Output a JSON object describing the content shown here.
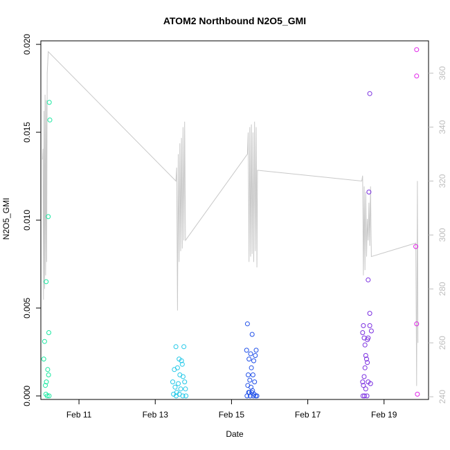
{
  "chart_data": {
    "type": "scatter",
    "title": "ATOM2 Northbound N2O5_GMI",
    "xlabel": "Date",
    "ylabel": "N2O5_GMI",
    "x_axis_type": "date",
    "xlim": [
      "2017-02-10 00:00",
      "2017-02-20 04:00"
    ],
    "x_tick_values": [
      "2017-02-11",
      "2017-02-13",
      "2017-02-15",
      "2017-02-17",
      "2017-02-19"
    ],
    "x_tick_labels": [
      "Feb 11",
      "Feb 13",
      "Feb 15",
      "Feb 17",
      "Feb 19"
    ],
    "ylim": [
      -0.0002,
      0.0202
    ],
    "y_ticks": [
      0.0,
      0.005,
      0.01,
      0.015,
      0.02
    ],
    "y_tick_labels": [
      "0.000",
      "0.005",
      "0.010",
      "0.015",
      "0.020"
    ],
    "y2lim": [
      239,
      372
    ],
    "y2_ticks": [
      240,
      260,
      280,
      300,
      320,
      340,
      360
    ],
    "y2_tick_labels": [
      "240",
      "260",
      "280",
      "300",
      "320",
      "340",
      "360"
    ],
    "grid": false,
    "legend": "none",
    "colors": {
      "line": "#c8c8c8",
      "right_axis": "#bdbdbd",
      "axis": "#000000"
    },
    "series": [
      {
        "color": "#18e8a0",
        "points": [
          [
            "2017-02-10 05:20",
            0.0167
          ],
          [
            "2017-02-10 05:40",
            0.0157
          ],
          [
            "2017-02-10 04:40",
            0.0102
          ],
          [
            "2017-02-10 03:20",
            0.0065
          ],
          [
            "2017-02-10 05:00",
            0.0036
          ],
          [
            "2017-02-10 02:20",
            0.0031
          ],
          [
            "2017-02-10 01:50",
            0.0021
          ],
          [
            "2017-02-10 04:20",
            0.0015
          ],
          [
            "2017-02-10 04:50",
            0.0012
          ],
          [
            "2017-02-10 03:30",
            0.0008
          ],
          [
            "2017-02-10 02:50",
            0.0006
          ],
          [
            "2017-02-10 03:10",
            0.0001
          ],
          [
            "2017-02-10 04:00",
            0.0
          ],
          [
            "2017-02-10 05:10",
            0.0
          ]
        ]
      },
      {
        "color": "#22c8e8",
        "points": [
          [
            "2017-02-13 13:00",
            0.0028
          ],
          [
            "2017-02-13 18:00",
            0.0028
          ],
          [
            "2017-02-13 15:00",
            0.0021
          ],
          [
            "2017-02-13 16:30",
            0.002
          ],
          [
            "2017-02-13 12:00",
            0.0015
          ],
          [
            "2017-02-13 17:00",
            0.0018
          ],
          [
            "2017-02-13 14:00",
            0.0016
          ],
          [
            "2017-02-13 15:30",
            0.0012
          ],
          [
            "2017-02-13 17:30",
            0.0011
          ],
          [
            "2017-02-13 11:00",
            0.0008
          ],
          [
            "2017-02-13 14:30",
            0.0007
          ],
          [
            "2017-02-13 18:30",
            0.0008
          ],
          [
            "2017-02-13 12:30",
            0.0005
          ],
          [
            "2017-02-13 16:00",
            0.0004
          ],
          [
            "2017-02-13 19:00",
            0.0004
          ],
          [
            "2017-02-13 13:30",
            0.0002
          ],
          [
            "2017-02-13 11:30",
            0.0001
          ],
          [
            "2017-02-13 15:10",
            0.0001
          ],
          [
            "2017-02-13 17:20",
            0.0
          ],
          [
            "2017-02-13 19:20",
            0.0
          ],
          [
            "2017-02-13 13:10",
            0.0
          ]
        ]
      },
      {
        "color": "#2050e8",
        "points": [
          [
            "2017-02-15 10:00",
            0.0041
          ],
          [
            "2017-02-15 13:00",
            0.0035
          ],
          [
            "2017-02-15 09:30",
            0.0026
          ],
          [
            "2017-02-15 15:30",
            0.0026
          ],
          [
            "2017-02-15 12:00",
            0.0024
          ],
          [
            "2017-02-15 15:00",
            0.0023
          ],
          [
            "2017-02-15 11:00",
            0.0021
          ],
          [
            "2017-02-15 14:00",
            0.002
          ],
          [
            "2017-02-15 12:30",
            0.0016
          ],
          [
            "2017-02-15 10:30",
            0.0012
          ],
          [
            "2017-02-15 13:30",
            0.0012
          ],
          [
            "2017-02-15 11:30",
            0.0009
          ],
          [
            "2017-02-15 14:30",
            0.0008
          ],
          [
            "2017-02-15 10:15",
            0.0006
          ],
          [
            "2017-02-15 12:15",
            0.0005
          ],
          [
            "2017-02-15 13:15",
            0.0003
          ],
          [
            "2017-02-15 11:15",
            0.0002
          ],
          [
            "2017-02-15 10:45",
            0.0002
          ],
          [
            "2017-02-15 12:45",
            0.0002
          ],
          [
            "2017-02-15 14:15",
            0.0001
          ],
          [
            "2017-02-15 09:45",
            0.0
          ],
          [
            "2017-02-15 11:45",
            0.0
          ],
          [
            "2017-02-15 13:45",
            0.0
          ],
          [
            "2017-02-15 15:15",
            0.0
          ],
          [
            "2017-02-15 16:00",
            0.0
          ]
        ]
      },
      {
        "color": "#7a2ee0",
        "points": [
          [
            "2017-02-18 15:00",
            0.0172
          ],
          [
            "2017-02-18 14:30",
            0.0116
          ],
          [
            "2017-02-18 14:00",
            0.0066
          ],
          [
            "2017-02-18 15:00",
            0.0047
          ],
          [
            "2017-02-18 11:00",
            0.004
          ],
          [
            "2017-02-18 15:00",
            0.004
          ],
          [
            "2017-02-18 10:30",
            0.0036
          ],
          [
            "2017-02-18 16:00",
            0.0037
          ],
          [
            "2017-02-18 11:30",
            0.0033
          ],
          [
            "2017-02-18 14:00",
            0.0033
          ],
          [
            "2017-02-18 13:30",
            0.0032
          ],
          [
            "2017-02-18 12:00",
            0.0029
          ],
          [
            "2017-02-18 12:30",
            0.0023
          ],
          [
            "2017-02-18 13:00",
            0.0021
          ],
          [
            "2017-02-18 13:30",
            0.0019
          ],
          [
            "2017-02-18 12:00",
            0.0016
          ],
          [
            "2017-02-18 11:30",
            0.0011
          ],
          [
            "2017-02-18 10:30",
            0.0008
          ],
          [
            "2017-02-18 14:00",
            0.0008
          ],
          [
            "2017-02-18 15:30",
            0.0007
          ],
          [
            "2017-02-18 11:00",
            0.0006
          ],
          [
            "2017-02-18 12:30",
            0.0004
          ],
          [
            "2017-02-18 10:45",
            0.0
          ],
          [
            "2017-02-18 11:45",
            0.0
          ],
          [
            "2017-02-18 13:15",
            0.0
          ]
        ]
      },
      {
        "color": "#e020e8",
        "points": [
          [
            "2017-02-19 20:30",
            0.0197
          ],
          [
            "2017-02-19 20:30",
            0.0182
          ],
          [
            "2017-02-19 20:00",
            0.0085
          ],
          [
            "2017-02-19 20:30",
            0.0041
          ],
          [
            "2017-02-19 21:00",
            0.0001
          ]
        ]
      }
    ],
    "line_series": {
      "axis": "right",
      "color": "#c8c8c8",
      "points": [
        [
          "2017-02-10 01:00",
          328
        ],
        [
          "2017-02-10 01:20",
          332
        ],
        [
          "2017-02-10 01:40",
          276
        ],
        [
          "2017-02-10 02:00",
          346
        ],
        [
          "2017-02-10 02:20",
          280
        ],
        [
          "2017-02-10 02:40",
          352
        ],
        [
          "2017-02-10 03:00",
          285
        ],
        [
          "2017-02-10 03:20",
          350
        ],
        [
          "2017-02-10 03:40",
          290
        ],
        [
          "2017-02-10 04:00",
          360
        ],
        [
          "2017-02-10 04:40",
          368
        ],
        [
          "2017-02-13 13:00",
          320
        ],
        [
          "2017-02-13 13:30",
          325
        ],
        [
          "2017-02-13 14:00",
          272
        ],
        [
          "2017-02-13 14:30",
          330
        ],
        [
          "2017-02-13 15:00",
          290
        ],
        [
          "2017-02-13 15:30",
          334
        ],
        [
          "2017-02-13 16:00",
          294
        ],
        [
          "2017-02-13 16:30",
          336
        ],
        [
          "2017-02-13 17:00",
          295
        ],
        [
          "2017-02-13 17:30",
          340
        ],
        [
          "2017-02-13 18:00",
          298
        ],
        [
          "2017-02-13 18:30",
          342
        ],
        [
          "2017-02-13 19:00",
          298
        ],
        [
          "2017-02-15 10:00",
          330
        ],
        [
          "2017-02-15 10:30",
          338
        ],
        [
          "2017-02-15 11:00",
          290
        ],
        [
          "2017-02-15 11:30",
          340
        ],
        [
          "2017-02-15 12:00",
          292
        ],
        [
          "2017-02-15 12:30",
          341
        ],
        [
          "2017-02-15 13:00",
          293
        ],
        [
          "2017-02-15 13:30",
          338
        ],
        [
          "2017-02-15 14:00",
          290
        ],
        [
          "2017-02-15 14:30",
          342
        ],
        [
          "2017-02-15 15:00",
          294
        ],
        [
          "2017-02-15 15:30",
          340
        ],
        [
          "2017-02-15 16:00",
          288
        ],
        [
          "2017-02-15 16:20",
          324
        ],
        [
          "2017-02-18 10:00",
          320
        ],
        [
          "2017-02-18 10:30",
          322
        ],
        [
          "2017-02-18 11:00",
          285
        ],
        [
          "2017-02-18 11:30",
          318
        ],
        [
          "2017-02-18 12:00",
          287
        ],
        [
          "2017-02-18 12:30",
          316
        ],
        [
          "2017-02-18 13:00",
          292
        ],
        [
          "2017-02-18 13:30",
          306
        ],
        [
          "2017-02-18 14:00",
          298
        ],
        [
          "2017-02-18 14:30",
          312
        ],
        [
          "2017-02-18 15:00",
          296
        ],
        [
          "2017-02-18 15:30",
          318
        ],
        [
          "2017-02-18 16:00",
          292
        ],
        [
          "2017-02-19 20:00",
          297
        ],
        [
          "2017-02-19 20:30",
          244
        ],
        [
          "2017-02-19 21:00",
          320
        ],
        [
          "2017-02-19 21:20",
          260
        ]
      ]
    }
  }
}
